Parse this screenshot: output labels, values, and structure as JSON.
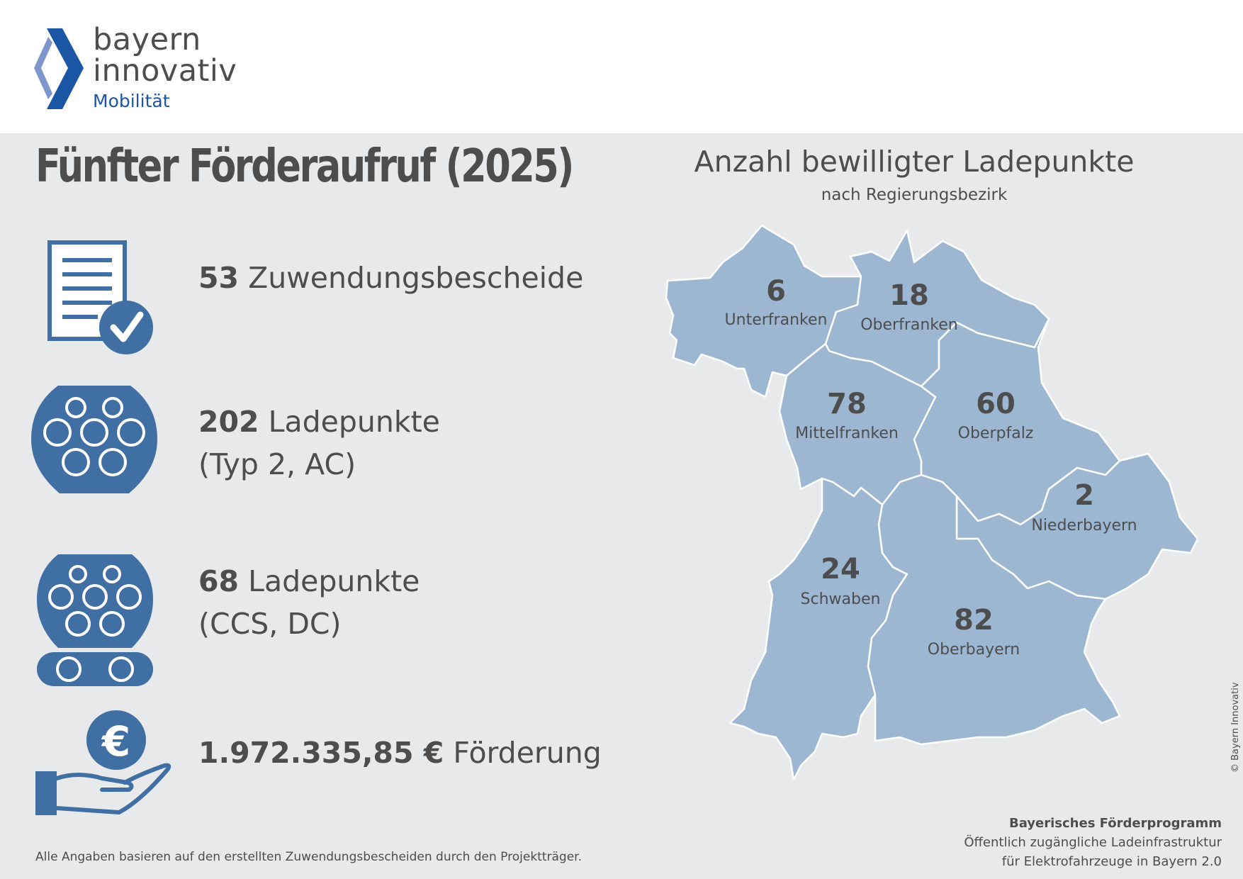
{
  "logo": {
    "line1": "bayern",
    "line2": "innovativ",
    "sub": "Mobilität"
  },
  "title": "Fünfter Förderaufruf (2025)",
  "stats": [
    {
      "icon": "document-check-icon",
      "value": "53",
      "label": "Zuwendungsbescheide",
      "label2": ""
    },
    {
      "icon": "type2-plug-icon",
      "value": "202",
      "label": "Ladepunkte",
      "label2": "(Typ 2, AC)"
    },
    {
      "icon": "ccs-plug-icon",
      "value": "68",
      "label": "Ladepunkte",
      "label2": "(CCS, DC)"
    },
    {
      "icon": "euro-hand-icon",
      "value": "1.972.335,85 €",
      "label": "Förderung",
      "label2": ""
    }
  ],
  "footnote": "Alle Angaben basieren auf den erstellten Zuwendungsbescheiden durch den Projektträger.",
  "map": {
    "title": "Anzahl bewilligter Ladepunkte",
    "subtitle": "nach Regierungsbezirk",
    "regions": [
      {
        "name": "Unterfranken",
        "count": "6"
      },
      {
        "name": "Oberfranken",
        "count": "18"
      },
      {
        "name": "Mittelfranken",
        "count": "78"
      },
      {
        "name": "Oberpfalz",
        "count": "60"
      },
      {
        "name": "Niederbayern",
        "count": "2"
      },
      {
        "name": "Schwaben",
        "count": "24"
      },
      {
        "name": "Oberbayern",
        "count": "82"
      }
    ]
  },
  "copyright": "© Bayern Innovativ",
  "program": {
    "title": "Bayerisches Förderprogramm",
    "line1": "Öffentlich zugängliche Ladeinfrastruktur",
    "line2": "für Elektrofahrzeuge in Bayern 2.0"
  },
  "colors": {
    "icon_blue": "#3f6fa3",
    "map_fill": "#9db7d2",
    "brand_blue": "#1a56a3",
    "brand_light": "#7f96cc",
    "background": "#e8e9eb"
  }
}
